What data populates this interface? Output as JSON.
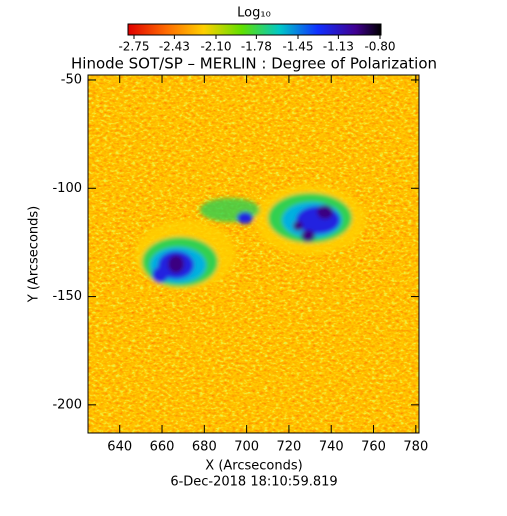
{
  "chart_data": {
    "type": "image",
    "title": "Hinode SOT/SP – MERLIN : Degree of Polarization",
    "colorbar_label": "Log₁₀",
    "colorbar_lim": [
      -2.75,
      -0.8
    ],
    "colorbar_ticks": [
      -2.75,
      -2.43,
      {
        "value": -2.1,
        "label": "-2.10"
      },
      -1.78,
      -1.45,
      -1.13,
      {
        "value": -0.8,
        "label": "-0.80"
      }
    ],
    "xlabel": "X (Arcseconds)",
    "ylabel": "Y (Arcseconds)",
    "xlim": [
      625,
      781.5
    ],
    "xticks": [
      640,
      660,
      680,
      700,
      720,
      740,
      760,
      780
    ],
    "ylim": [
      -213,
      -47.7
    ],
    "yticks": [
      -200,
      -150,
      -100,
      -50
    ],
    "footer": "6-Dec-2018 18:10:59.819"
  }
}
